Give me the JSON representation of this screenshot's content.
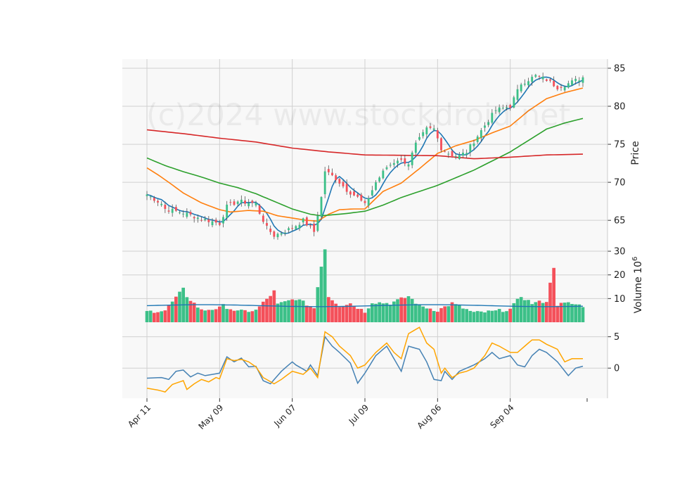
{
  "watermark": "(c)2024 www.stockdroid.net",
  "colors": {
    "background": "#ffffff",
    "panel": "#f8f8f8",
    "grid": "#d0d0d0",
    "up": "#3cc088",
    "down": "#f4505a",
    "sma_fast": "#1f77b4",
    "sma_mid": "#ff7f0e",
    "sma_slow": "#2ca02c",
    "sma_long": "#d62728",
    "volume_avg": "#1f77b4",
    "macd": "#4682b4",
    "signal": "#ffa500"
  },
  "chart_data": [
    {
      "type": "candlestick",
      "ylabel": "Price",
      "ylim": [
        61.5,
        86.2
      ],
      "yticks": [
        65,
        70,
        75,
        80,
        85
      ],
      "xtick_labels": [
        "Apr 11",
        "May 09",
        "Jun 07",
        "Jul 09",
        "Aug 06",
        "Sep 04"
      ],
      "xtick_indices": [
        0,
        20,
        40,
        60,
        80,
        100
      ],
      "n_periods": 121,
      "grid": true,
      "close_anchors": [
        [
          0,
          68.4
        ],
        [
          4,
          67.2
        ],
        [
          5,
          66.5
        ],
        [
          10,
          66.0
        ],
        [
          15,
          65.2
        ],
        [
          20,
          64.6
        ],
        [
          22,
          66.8
        ],
        [
          25,
          67.5
        ],
        [
          30,
          67.2
        ],
        [
          31,
          66.0
        ],
        [
          33,
          64.0
        ],
        [
          35,
          63.0
        ],
        [
          40,
          64.0
        ],
        [
          43,
          65.0
        ],
        [
          46,
          63.5
        ],
        [
          48,
          68.0
        ],
        [
          49,
          71.5
        ],
        [
          52,
          70.5
        ],
        [
          55,
          69.0
        ],
        [
          58,
          68.0
        ],
        [
          60,
          67.0
        ],
        [
          63,
          70.0
        ],
        [
          66,
          72.0
        ],
        [
          69,
          73.0
        ],
        [
          72,
          72.5
        ],
        [
          74,
          75.0
        ],
        [
          77,
          77.0
        ],
        [
          79,
          77.0
        ],
        [
          81,
          74.5
        ],
        [
          84,
          73.5
        ],
        [
          86,
          73.5
        ],
        [
          88,
          74.0
        ],
        [
          93,
          77.5
        ],
        [
          96,
          79.5
        ],
        [
          100,
          80.0
        ],
        [
          103,
          83.0
        ],
        [
          107,
          84.0
        ],
        [
          110,
          83.5
        ],
        [
          113,
          82.5
        ],
        [
          116,
          83.0
        ],
        [
          120,
          83.8
        ]
      ],
      "sma_series": [
        {
          "color": "#1f77b4",
          "window": 5
        },
        {
          "color": "#ff7f0e",
          "window": 15
        },
        {
          "color": "#2ca02c",
          "window": 40
        },
        {
          "color": "#d62728",
          "window": 200
        }
      ]
    },
    {
      "type": "bar",
      "ylabel": "Volume  10^6",
      "ylim": [
        0,
        31.5
      ],
      "yticks": [
        10,
        20,
        30
      ],
      "volume_anchors": [
        [
          0,
          4.5
        ],
        [
          5,
          5.0
        ],
        [
          10,
          14.0
        ],
        [
          11,
          11.0
        ],
        [
          15,
          5.0
        ],
        [
          20,
          6.0
        ],
        [
          21,
          7.0
        ],
        [
          25,
          4.5
        ],
        [
          30,
          5.0
        ],
        [
          35,
          13.0
        ],
        [
          36,
          7.5
        ],
        [
          41,
          10.0
        ],
        [
          46,
          6.0
        ],
        [
          48,
          24.0
        ],
        [
          49,
          31.0
        ],
        [
          50,
          11.0
        ],
        [
          53,
          7.0
        ],
        [
          56,
          8.0
        ],
        [
          60,
          4.5
        ],
        [
          62,
          8.5
        ],
        [
          67,
          8.0
        ],
        [
          72,
          11.0
        ],
        [
          75,
          7.0
        ],
        [
          80,
          5.0
        ],
        [
          84,
          8.0
        ],
        [
          90,
          4.0
        ],
        [
          95,
          4.5
        ],
        [
          100,
          5.5
        ],
        [
          103,
          11.0
        ],
        [
          106,
          8.0
        ],
        [
          110,
          9.0
        ],
        [
          112,
          23.5
        ],
        [
          113,
          7.5
        ],
        [
          116,
          8.0
        ],
        [
          120,
          7.0
        ]
      ],
      "avg_line_level": 7.0
    },
    {
      "type": "line",
      "ylim": [
        -4.8,
        7.2
      ],
      "yticks": [
        0,
        5
      ],
      "series": [
        {
          "color": "#4682b4",
          "anchors": [
            [
              0,
              -1.6
            ],
            [
              4,
              -1.5
            ],
            [
              6,
              -1.8
            ],
            [
              8,
              -0.5
            ],
            [
              10,
              -0.3
            ],
            [
              12,
              -1.4
            ],
            [
              14,
              -0.8
            ],
            [
              16,
              -1.2
            ],
            [
              18,
              -1.0
            ],
            [
              20,
              -0.8
            ],
            [
              22,
              1.8
            ],
            [
              24,
              1.0
            ],
            [
              26,
              1.6
            ],
            [
              28,
              0.2
            ],
            [
              30,
              0.3
            ],
            [
              32,
              -2.0
            ],
            [
              34,
              -2.5
            ],
            [
              37,
              -0.5
            ],
            [
              40,
              1.0
            ],
            [
              41,
              0.5
            ],
            [
              44,
              -0.5
            ],
            [
              45,
              0.5
            ],
            [
              47,
              -1.2
            ],
            [
              49,
              5.0
            ],
            [
              51,
              3.5
            ],
            [
              53,
              2.5
            ],
            [
              56,
              0.8
            ],
            [
              58,
              -2.4
            ],
            [
              60,
              -0.8
            ],
            [
              63,
              2.0
            ],
            [
              66,
              3.5
            ],
            [
              68,
              1.5
            ],
            [
              70,
              -0.5
            ],
            [
              72,
              3.5
            ],
            [
              75,
              3.0
            ],
            [
              77,
              1.0
            ],
            [
              79,
              -1.8
            ],
            [
              81,
              -2.0
            ],
            [
              82,
              -0.5
            ],
            [
              84,
              -1.8
            ],
            [
              86,
              -0.5
            ],
            [
              88,
              0.0
            ],
            [
              90,
              0.5
            ],
            [
              93,
              1.5
            ],
            [
              95,
              2.5
            ],
            [
              97,
              1.5
            ],
            [
              100,
              2.0
            ],
            [
              102,
              0.5
            ],
            [
              104,
              0.2
            ],
            [
              106,
              2.0
            ],
            [
              108,
              3.0
            ],
            [
              110,
              2.5
            ],
            [
              113,
              1.0
            ],
            [
              116,
              -1.2
            ],
            [
              118,
              0.0
            ],
            [
              120,
              0.3
            ]
          ]
        },
        {
          "color": "#ffa500",
          "anchors": [
            [
              0,
              -3.2
            ],
            [
              3,
              -3.5
            ],
            [
              5,
              -3.8
            ],
            [
              7,
              -2.6
            ],
            [
              10,
              -2.0
            ],
            [
              11,
              -3.4
            ],
            [
              13,
              -2.5
            ],
            [
              15,
              -1.8
            ],
            [
              17,
              -2.2
            ],
            [
              19,
              -1.5
            ],
            [
              20,
              -1.7
            ],
            [
              22,
              1.5
            ],
            [
              24,
              1.2
            ],
            [
              26,
              1.4
            ],
            [
              28,
              1.0
            ],
            [
              30,
              0.2
            ],
            [
              32,
              -1.5
            ],
            [
              35,
              -2.5
            ],
            [
              37,
              -1.8
            ],
            [
              40,
              -0.5
            ],
            [
              43,
              -1.0
            ],
            [
              45,
              0.0
            ],
            [
              47,
              -1.5
            ],
            [
              49,
              5.8
            ],
            [
              51,
              5.0
            ],
            [
              53,
              3.5
            ],
            [
              56,
              2.0
            ],
            [
              58,
              0.0
            ],
            [
              60,
              0.5
            ],
            [
              63,
              2.5
            ],
            [
              66,
              4.0
            ],
            [
              68,
              2.5
            ],
            [
              70,
              1.5
            ],
            [
              72,
              5.5
            ],
            [
              75,
              6.5
            ],
            [
              77,
              4.0
            ],
            [
              79,
              3.0
            ],
            [
              81,
              -0.8
            ],
            [
              82,
              0.0
            ],
            [
              84,
              -1.5
            ],
            [
              86,
              -0.8
            ],
            [
              88,
              -0.5
            ],
            [
              90,
              0.0
            ],
            [
              93,
              2.0
            ],
            [
              95,
              4.0
            ],
            [
              97,
              3.5
            ],
            [
              100,
              2.5
            ],
            [
              102,
              2.5
            ],
            [
              104,
              3.5
            ],
            [
              106,
              4.5
            ],
            [
              108,
              4.5
            ],
            [
              110,
              3.8
            ],
            [
              113,
              3.0
            ],
            [
              115,
              1.0
            ],
            [
              117,
              1.5
            ],
            [
              120,
              1.5
            ]
          ]
        }
      ]
    }
  ]
}
